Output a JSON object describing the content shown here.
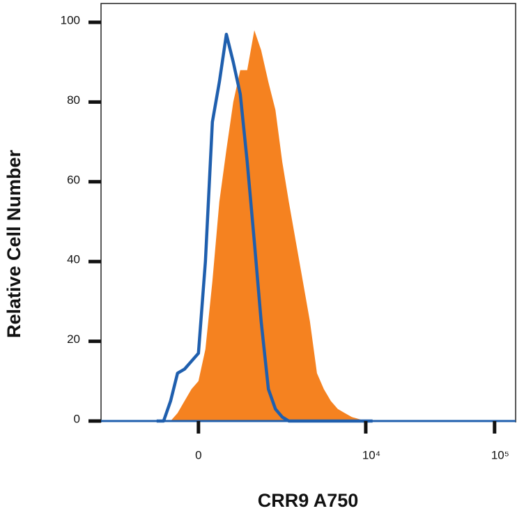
{
  "chart_data": {
    "type": "histogram-overlay",
    "xlabel": "CRR9 A750",
    "ylabel": "Relative Cell Number",
    "xscale": "biexponential",
    "x": [
      -827,
      -670,
      -525,
      -386,
      -254,
      -126,
      0,
      126,
      254,
      386,
      525,
      670,
      827,
      996,
      1184,
      1384,
      1618,
      1870,
      2143,
      2437,
      2790,
      3185,
      3630,
      4135,
      4690,
      5330,
      6045,
      6865,
      7785,
      8816,
      10000,
      11300
    ],
    "series": [
      {
        "color": "#f58220",
        "fill": true,
        "values": [
          0,
          0,
          0,
          2,
          5,
          8,
          10,
          18,
          35,
          55,
          68,
          80,
          88,
          88,
          98,
          93,
          85,
          78,
          65,
          55,
          45,
          35,
          25,
          12,
          8,
          5,
          3,
          2,
          1,
          0.5,
          0,
          0
        ]
      },
      {
        "color": "#1f5fae",
        "fill": false,
        "values": [
          0,
          0,
          5,
          12,
          13,
          15,
          17,
          40,
          75,
          85,
          97,
          90,
          82,
          65,
          45,
          25,
          8,
          3,
          1,
          0,
          0,
          0,
          0,
          0,
          0,
          0,
          0,
          0,
          0,
          0,
          0,
          0
        ]
      }
    ],
    "xlim": [
      -2790,
      145600
    ],
    "ylim": [
      0,
      100
    ],
    "xticks": [
      0,
      {
        "value": 10000,
        "label": "10⁴"
      },
      {
        "value": 100000,
        "label": "10⁵"
      }
    ],
    "yticks": [
      0,
      20,
      40,
      60,
      80,
      100
    ]
  }
}
